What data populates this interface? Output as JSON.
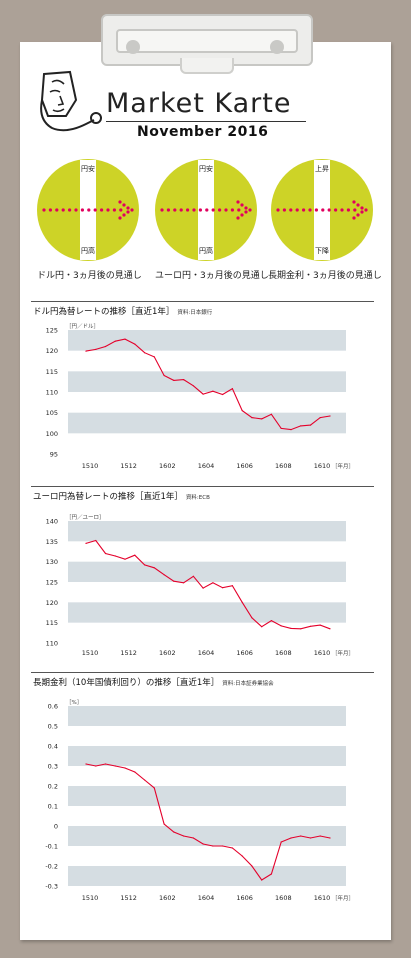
{
  "header": {
    "title": "Market Karte",
    "month": "November   2016"
  },
  "outlook_gauges": [
    {
      "top_label": "円安",
      "bottom_label": "円高",
      "caption": "ドル円・3ヵ月後の見通し"
    },
    {
      "top_label": "円安",
      "bottom_label": "円高",
      "caption": "ユーロ円・3ヵ月後の見通し"
    },
    {
      "top_label": "上昇",
      "bottom_label": "下降",
      "caption": "長期金利・3ヵ月後の見通し"
    }
  ],
  "colors": {
    "gauge_fill": "#cdd327",
    "arrow": "#e0005e",
    "series_line": "#e4002b",
    "band": "#d5dde2"
  },
  "chart_data": [
    {
      "type": "line",
      "title": "ドル円為替レートの推移［直近1年］",
      "source": "資料:日本銀行",
      "unit_label": "［円／ドル］",
      "xlabel_unit": "［年月］",
      "x_ticks": [
        "1510",
        "1512",
        "1602",
        "1604",
        "1606",
        "1608",
        "1610"
      ],
      "y_ticks": [
        "125",
        "120",
        "115",
        "110",
        "105",
        "100",
        "95"
      ],
      "ylim": [
        95,
        125
      ],
      "x": [
        "1510a",
        "1510b",
        "1511a",
        "1511b",
        "1512a",
        "1512b",
        "1601a",
        "1601b",
        "1602a",
        "1602b",
        "1603a",
        "1603b",
        "1604a",
        "1604b",
        "1605a",
        "1605b",
        "1606a",
        "1606b",
        "1607a",
        "1607b",
        "1608a",
        "1608b",
        "1609a",
        "1609b",
        "1610a",
        "1610b"
      ],
      "series": [
        {
          "values": [
            119.9,
            120.3,
            121.0,
            122.3,
            122.8,
            121.6,
            119.5,
            118.5,
            114.0,
            112.8,
            113.0,
            111.5,
            109.5,
            110.2,
            109.4,
            110.8,
            105.5,
            103.8,
            103.5,
            104.6,
            101.2,
            100.9,
            101.8,
            102.0,
            103.8,
            104.2
          ]
        }
      ]
    },
    {
      "type": "line",
      "title": "ユーロ円為替レートの推移［直近1年］",
      "source": "資料:ECB",
      "unit_label": "［円／ユーロ］",
      "xlabel_unit": "［年月］",
      "x_ticks": [
        "1510",
        "1512",
        "1602",
        "1604",
        "1606",
        "1608",
        "1610"
      ],
      "y_ticks": [
        "140",
        "135",
        "130",
        "125",
        "120",
        "115",
        "110"
      ],
      "ylim": [
        110,
        140
      ],
      "x": [
        "1510a",
        "1510b",
        "1511a",
        "1511b",
        "1512a",
        "1512b",
        "1601a",
        "1601b",
        "1602a",
        "1602b",
        "1603a",
        "1603b",
        "1604a",
        "1604b",
        "1605a",
        "1605b",
        "1606a",
        "1606b",
        "1607a",
        "1607b",
        "1608a",
        "1608b",
        "1609a",
        "1609b",
        "1610a",
        "1610b"
      ],
      "series": [
        {
          "values": [
            134.5,
            135.2,
            132.0,
            131.4,
            130.6,
            131.6,
            129.2,
            128.5,
            126.8,
            125.2,
            124.8,
            126.4,
            123.5,
            124.8,
            123.6,
            124.1,
            120.0,
            116.2,
            114.0,
            115.5,
            114.2,
            113.6,
            113.5,
            114.1,
            114.4,
            113.5
          ]
        }
      ]
    },
    {
      "type": "line",
      "title": "長期金利（10年国債利回り）の推移［直近1年］",
      "source": "資料:日本証券業協会",
      "unit_label": "［%］",
      "xlabel_unit": "［年月］",
      "x_ticks": [
        "1510",
        "1512",
        "1602",
        "1604",
        "1606",
        "1608",
        "1610"
      ],
      "y_ticks": [
        "0.6",
        "0.5",
        "0.4",
        "0.3",
        "0.2",
        "0.1",
        "0",
        "-0.1",
        "-0.2",
        "-0.3"
      ],
      "ylim": [
        -0.3,
        0.6
      ],
      "x": [
        "1510a",
        "1510b",
        "1511a",
        "1511b",
        "1512a",
        "1512b",
        "1601a",
        "1601b",
        "1602a",
        "1602b",
        "1603a",
        "1603b",
        "1604a",
        "1604b",
        "1605a",
        "1605b",
        "1606a",
        "1606b",
        "1607a",
        "1607b",
        "1608a",
        "1608b",
        "1609a",
        "1609b",
        "1610a",
        "1610b"
      ],
      "series": [
        {
          "values": [
            0.31,
            0.3,
            0.31,
            0.3,
            0.29,
            0.27,
            0.23,
            0.19,
            0.01,
            -0.03,
            -0.05,
            -0.06,
            -0.09,
            -0.1,
            -0.1,
            -0.11,
            -0.15,
            -0.2,
            -0.27,
            -0.24,
            -0.08,
            -0.06,
            -0.05,
            -0.06,
            -0.05,
            -0.06
          ]
        }
      ]
    }
  ]
}
